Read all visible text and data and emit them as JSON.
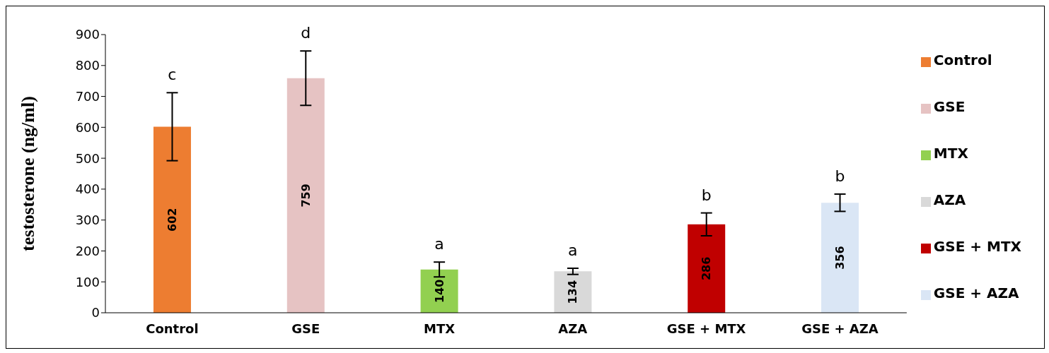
{
  "chart_data": {
    "type": "bar",
    "ylabel": "testosterone (ng/ml)",
    "categories": [
      "Control",
      "GSE",
      "MTX",
      "AZA",
      "GSE + MTX",
      "GSE + AZA"
    ],
    "stacked": true,
    "series": [
      {
        "name": "Control",
        "color": "#ed7d31",
        "values": [
          602,
          null,
          null,
          null,
          null,
          null
        ],
        "errors": [
          110,
          null,
          null,
          null,
          null,
          null
        ]
      },
      {
        "name": "GSE",
        "color": "#e6c3c3",
        "values": [
          null,
          759,
          null,
          null,
          null,
          null
        ],
        "errors": [
          null,
          88,
          null,
          null,
          null,
          null
        ]
      },
      {
        "name": "MTX",
        "color": "#92d050",
        "values": [
          null,
          null,
          140,
          null,
          null,
          null
        ],
        "errors": [
          null,
          null,
          24,
          null,
          null,
          null
        ]
      },
      {
        "name": "AZA",
        "color": "#d9d9d9",
        "values": [
          null,
          null,
          null,
          134,
          null,
          null
        ],
        "errors": [
          null,
          null,
          null,
          10,
          null,
          null
        ]
      },
      {
        "name": "GSE + MTX",
        "color": "#c00000",
        "values": [
          null,
          null,
          null,
          null,
          286,
          null
        ],
        "errors": [
          null,
          null,
          null,
          null,
          37,
          null
        ]
      },
      {
        "name": "GSE + AZA",
        "color": "#dae6f5",
        "values": [
          null,
          null,
          null,
          null,
          null,
          356
        ],
        "errors": [
          null,
          null,
          null,
          null,
          null,
          28
        ]
      }
    ],
    "data_labels": true,
    "ylim": [
      0,
      900
    ],
    "yticks": [
      0,
      100,
      200,
      300,
      400,
      500,
      600,
      700,
      800,
      900
    ],
    "grid": false,
    "legend": "right",
    "annotations": [
      {
        "text": "c",
        "x": "Control",
        "y": 712
      },
      {
        "text": "d",
        "x": "GSE",
        "y": 847
      },
      {
        "text": "a",
        "x": "MTX",
        "y": 164
      },
      {
        "text": "a",
        "x": "AZA",
        "y": 144
      },
      {
        "text": "b",
        "x": "GSE + MTX",
        "y": 323
      },
      {
        "text": "b",
        "x": "GSE + AZA",
        "y": 384
      }
    ]
  }
}
